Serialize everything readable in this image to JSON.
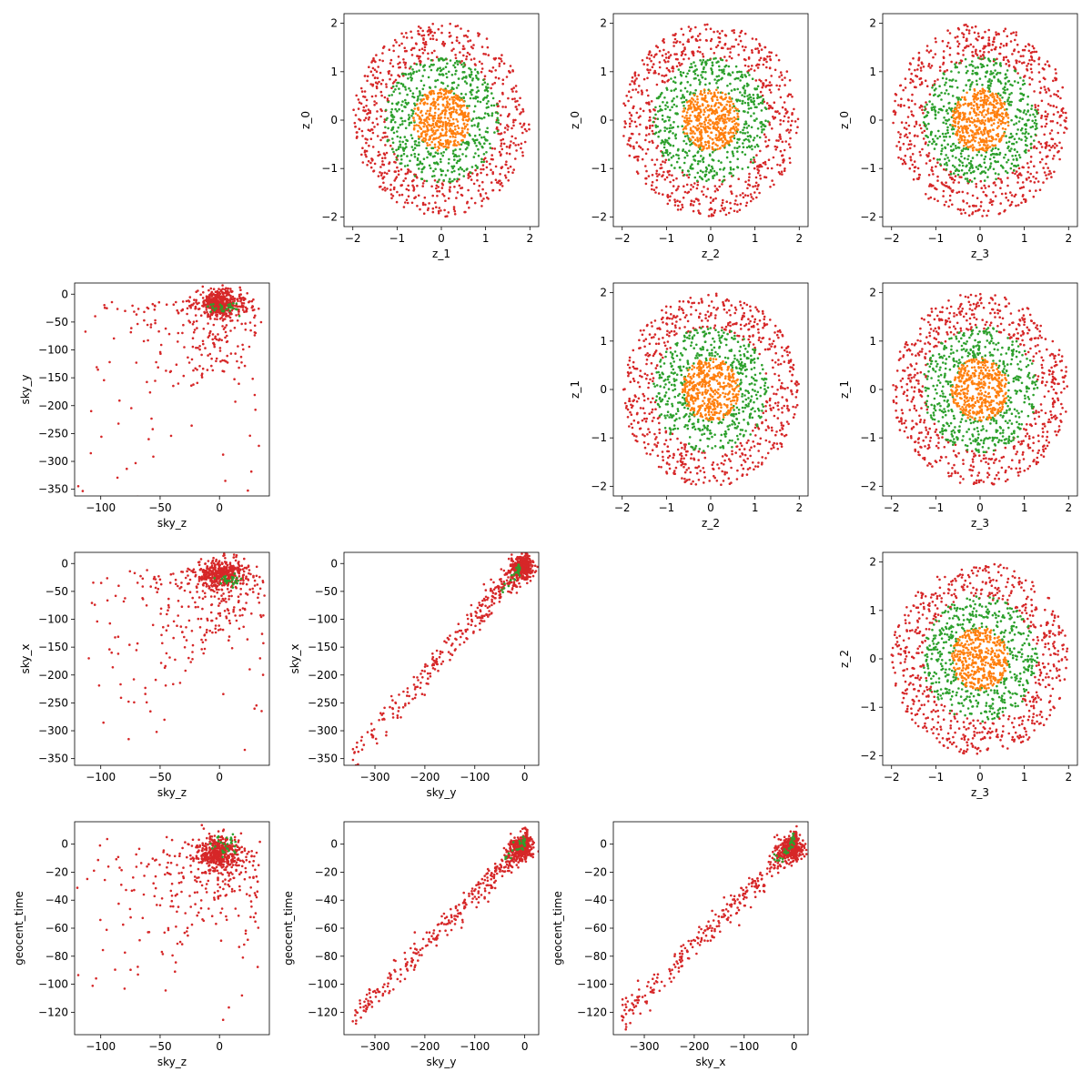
{
  "figure": {
    "background": "#ffffff"
  },
  "colors": {
    "series_outer": "#d62728",
    "series_middle": "#2ca02c",
    "series_inner": "#ff7f0e"
  },
  "chart_data": [
    {
      "id": "z1_z0",
      "type": "scatter",
      "row": 0,
      "col": 1,
      "xlabel": "z_1",
      "ylabel": "z_0",
      "xlim": [
        -2.2,
        2.2
      ],
      "ylim": [
        -2.2,
        2.2
      ],
      "xticks": [
        -2,
        -1,
        0,
        1,
        2
      ],
      "yticks": [
        -2,
        -1,
        0,
        1,
        2
      ],
      "kind": "rings",
      "series": [
        {
          "color": "#d62728",
          "r_min": 1.25,
          "r_max": 2.0,
          "count": 650
        },
        {
          "color": "#2ca02c",
          "r_min": 0.6,
          "r_max": 1.3,
          "count": 500
        },
        {
          "color": "#ff7f0e",
          "r_min": 0.0,
          "r_max": 0.65,
          "count": 420
        }
      ]
    },
    {
      "id": "z2_z0",
      "type": "scatter",
      "row": 0,
      "col": 2,
      "xlabel": "z_2",
      "ylabel": "z_0",
      "xlim": [
        -2.2,
        2.2
      ],
      "ylim": [
        -2.2,
        2.2
      ],
      "xticks": [
        -2,
        -1,
        0,
        1,
        2
      ],
      "yticks": [
        -2,
        -1,
        0,
        1,
        2
      ],
      "kind": "rings",
      "series": [
        {
          "color": "#d62728",
          "r_min": 1.25,
          "r_max": 2.0,
          "count": 650
        },
        {
          "color": "#2ca02c",
          "r_min": 0.6,
          "r_max": 1.3,
          "count": 500
        },
        {
          "color": "#ff7f0e",
          "r_min": 0.0,
          "r_max": 0.65,
          "count": 420
        }
      ]
    },
    {
      "id": "z3_z0",
      "type": "scatter",
      "row": 0,
      "col": 3,
      "xlabel": "z_3",
      "ylabel": "z_0",
      "xlim": [
        -2.2,
        2.2
      ],
      "ylim": [
        -2.2,
        2.2
      ],
      "xticks": [
        -2,
        -1,
        0,
        1,
        2
      ],
      "yticks": [
        -2,
        -1,
        0,
        1,
        2
      ],
      "kind": "rings",
      "series": [
        {
          "color": "#d62728",
          "r_min": 1.25,
          "r_max": 2.0,
          "count": 650
        },
        {
          "color": "#2ca02c",
          "r_min": 0.6,
          "r_max": 1.3,
          "count": 500
        },
        {
          "color": "#ff7f0e",
          "r_min": 0.0,
          "r_max": 0.65,
          "count": 420
        }
      ]
    },
    {
      "id": "skyz_skyy",
      "type": "scatter",
      "row": 1,
      "col": 0,
      "xlabel": "sky_z",
      "ylabel": "sky_y",
      "xlim": [
        -122,
        42
      ],
      "ylim": [
        -362,
        20
      ],
      "xticks": [
        -100,
        -50,
        0
      ],
      "yticks": [
        0,
        -50,
        -100,
        -150,
        -200,
        -250,
        -300,
        -350
      ],
      "kind": "skewed",
      "series": [
        {
          "color": "#d62728",
          "cluster": [
            0,
            -15
          ],
          "spread": [
            9,
            12
          ],
          "tail_x": [
            -115,
            35
          ],
          "tail_y": [
            -345,
            0
          ],
          "count": 700
        },
        {
          "color": "#2ca02c",
          "cluster": [
            5,
            -25
          ],
          "spread": [
            6,
            6
          ],
          "count": 30
        }
      ]
    },
    {
      "id": "z2_z1",
      "type": "scatter",
      "row": 1,
      "col": 2,
      "xlabel": "z_2",
      "ylabel": "z_1",
      "xlim": [
        -2.2,
        2.2
      ],
      "ylim": [
        -2.2,
        2.2
      ],
      "xticks": [
        -2,
        -1,
        0,
        1,
        2
      ],
      "yticks": [
        -2,
        -1,
        0,
        1,
        2
      ],
      "kind": "rings",
      "series": [
        {
          "color": "#d62728",
          "r_min": 1.25,
          "r_max": 2.0,
          "count": 650
        },
        {
          "color": "#2ca02c",
          "r_min": 0.6,
          "r_max": 1.3,
          "count": 500
        },
        {
          "color": "#ff7f0e",
          "r_min": 0.0,
          "r_max": 0.65,
          "count": 420
        }
      ]
    },
    {
      "id": "z3_z1",
      "type": "scatter",
      "row": 1,
      "col": 3,
      "xlabel": "z_3",
      "ylabel": "z_1",
      "xlim": [
        -2.2,
        2.2
      ],
      "ylim": [
        -2.2,
        2.2
      ],
      "xticks": [
        -2,
        -1,
        0,
        1,
        2
      ],
      "yticks": [
        -2,
        -1,
        0,
        1,
        2
      ],
      "kind": "rings",
      "series": [
        {
          "color": "#d62728",
          "r_min": 1.25,
          "r_max": 2.0,
          "count": 650
        },
        {
          "color": "#2ca02c",
          "r_min": 0.6,
          "r_max": 1.3,
          "count": 500
        },
        {
          "color": "#ff7f0e",
          "r_min": 0.0,
          "r_max": 0.65,
          "count": 420
        }
      ]
    },
    {
      "id": "skyz_skyx",
      "type": "scatter",
      "row": 2,
      "col": 0,
      "xlabel": "sky_z",
      "ylabel": "sky_x",
      "xlim": [
        -122,
        42
      ],
      "ylim": [
        -362,
        20
      ],
      "xticks": [
        -100,
        -50,
        0
      ],
      "yticks": [
        0,
        -50,
        -100,
        -150,
        -200,
        -250,
        -300,
        -350
      ],
      "kind": "skewed",
      "series": [
        {
          "color": "#d62728",
          "cluster": [
            2,
            -18
          ],
          "spread": [
            10,
            12
          ],
          "tail_x": [
            -115,
            38
          ],
          "tail_y": [
            -345,
            0
          ],
          "count": 700
        },
        {
          "color": "#2ca02c",
          "cluster": [
            10,
            -30
          ],
          "spread": [
            6,
            5
          ],
          "count": 30
        }
      ]
    },
    {
      "id": "skyy_skyx",
      "type": "scatter",
      "row": 2,
      "col": 1,
      "xlabel": "sky_y",
      "ylabel": "sky_x",
      "xlim": [
        -362,
        28
      ],
      "ylim": [
        -362,
        20
      ],
      "xticks": [
        -300,
        -200,
        -100,
        0
      ],
      "yticks": [
        0,
        -50,
        -100,
        -150,
        -200,
        -250,
        -300,
        -350
      ],
      "kind": "linear",
      "series": [
        {
          "color": "#d62728",
          "x_range": [
            -345,
            5
          ],
          "slope": 1.0,
          "intercept": 0,
          "noise": 14,
          "cluster": [
            -5,
            -5
          ],
          "spread": [
            12,
            10
          ],
          "count": 700
        },
        {
          "color": "#2ca02c",
          "x_range": [
            -60,
            -10
          ],
          "slope": 1.0,
          "intercept": 0,
          "noise": 5,
          "count": 30
        }
      ]
    },
    {
      "id": "z3_z2",
      "type": "scatter",
      "row": 2,
      "col": 3,
      "xlabel": "z_3",
      "ylabel": "z_2",
      "xlim": [
        -2.2,
        2.2
      ],
      "ylim": [
        -2.2,
        2.2
      ],
      "xticks": [
        -2,
        -1,
        0,
        1,
        2
      ],
      "yticks": [
        -2,
        -1,
        0,
        1,
        2
      ],
      "kind": "rings",
      "series": [
        {
          "color": "#d62728",
          "r_min": 1.25,
          "r_max": 2.0,
          "count": 650
        },
        {
          "color": "#2ca02c",
          "r_min": 0.6,
          "r_max": 1.3,
          "count": 500
        },
        {
          "color": "#ff7f0e",
          "r_min": 0.0,
          "r_max": 0.65,
          "count": 420
        }
      ]
    },
    {
      "id": "skyz_time",
      "type": "scatter",
      "row": 3,
      "col": 0,
      "xlabel": "sky_z",
      "ylabel": "geocent_time",
      "xlim": [
        -122,
        42
      ],
      "ylim": [
        -136,
        16
      ],
      "xticks": [
        -100,
        -50,
        0
      ],
      "yticks": [
        0,
        -20,
        -40,
        -60,
        -80,
        -100,
        -120
      ],
      "kind": "skewed",
      "series": [
        {
          "color": "#d62728",
          "cluster": [
            0,
            -6
          ],
          "spread": [
            9,
            6
          ],
          "tail_x": [
            -115,
            35
          ],
          "tail_y": [
            -128,
            0
          ],
          "count": 700
        },
        {
          "color": "#2ca02c",
          "cluster": [
            2,
            0
          ],
          "spread": [
            6,
            4
          ],
          "count": 30
        }
      ]
    },
    {
      "id": "skyy_time",
      "type": "scatter",
      "row": 3,
      "col": 1,
      "xlabel": "sky_y",
      "ylabel": "geocent_time",
      "xlim": [
        -362,
        28
      ],
      "ylim": [
        -136,
        16
      ],
      "xticks": [
        -300,
        -200,
        -100,
        0
      ],
      "yticks": [
        0,
        -20,
        -40,
        -60,
        -80,
        -100,
        -120
      ],
      "kind": "linear",
      "series": [
        {
          "color": "#d62728",
          "x_range": [
            -345,
            5
          ],
          "slope": 0.36,
          "intercept": 0,
          "noise": 5,
          "cluster": [
            -5,
            -3
          ],
          "spread": [
            12,
            4
          ],
          "count": 700
        },
        {
          "color": "#2ca02c",
          "x_range": [
            -40,
            0
          ],
          "slope": 0.36,
          "intercept": 2,
          "noise": 3,
          "count": 30
        }
      ]
    },
    {
      "id": "skyx_time",
      "type": "scatter",
      "row": 3,
      "col": 2,
      "xlabel": "sky_x",
      "ylabel": "geocent_time",
      "xlim": [
        -362,
        28
      ],
      "ylim": [
        -136,
        16
      ],
      "xticks": [
        -300,
        -200,
        -100,
        0
      ],
      "yticks": [
        0,
        -20,
        -40,
        -60,
        -80,
        -100,
        -120
      ],
      "kind": "linear",
      "series": [
        {
          "color": "#d62728",
          "x_range": [
            -345,
            5
          ],
          "slope": 0.36,
          "intercept": 0,
          "noise": 5,
          "cluster": [
            -5,
            -3
          ],
          "spread": [
            12,
            4
          ],
          "count": 700
        },
        {
          "color": "#2ca02c",
          "x_range": [
            -40,
            0
          ],
          "slope": 0.36,
          "intercept": 2,
          "noise": 3,
          "count": 30
        }
      ]
    }
  ]
}
